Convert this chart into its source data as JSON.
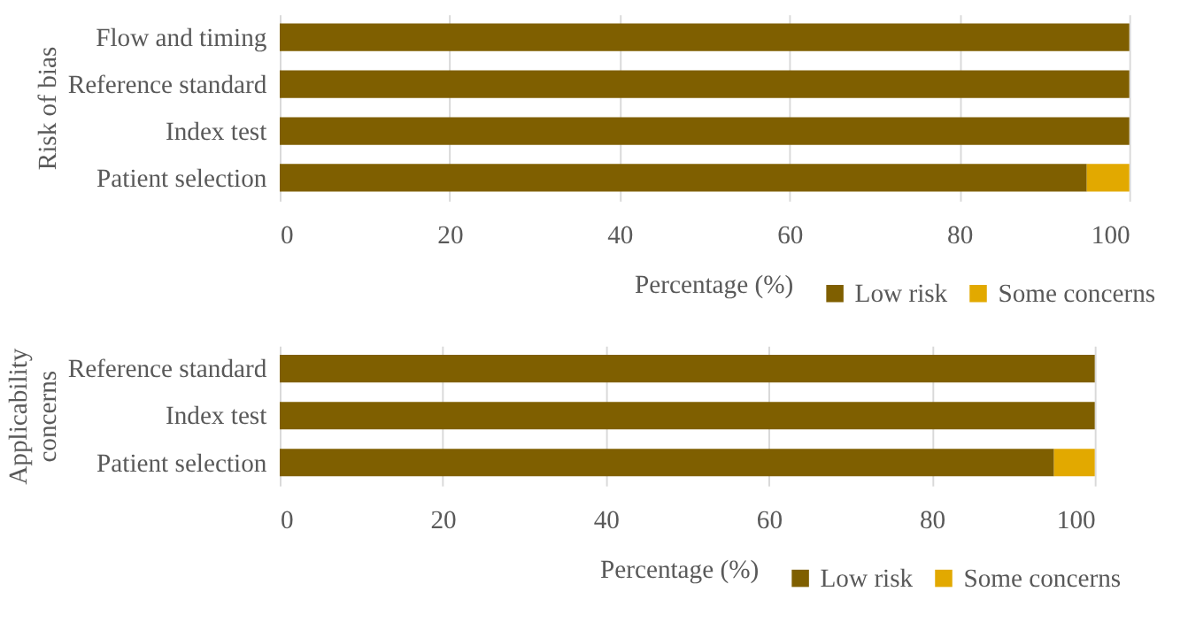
{
  "chart_data": [
    {
      "type": "bar",
      "orientation": "horizontal",
      "stacked": true,
      "ylabel": "Risk of bias",
      "xlabel": "Percentage (%)",
      "categories": [
        "Flow and timing",
        "Reference standard",
        "Index test",
        "Patient selection"
      ],
      "series": [
        {
          "name": "Low risk",
          "color": "#7f5f00",
          "values": [
            100,
            100,
            100,
            95
          ]
        },
        {
          "name": "Some concerns",
          "color": "#e2a900",
          "values": [
            0,
            0,
            0,
            5
          ]
        }
      ],
      "xlim": [
        0,
        100
      ],
      "xticks": [
        0,
        20,
        40,
        60,
        80,
        100
      ],
      "grid": "x",
      "legend": "bottom right"
    },
    {
      "type": "bar",
      "orientation": "horizontal",
      "stacked": true,
      "ylabel": "Applicability concerns",
      "xlabel": "Percentage (%)",
      "categories": [
        "Reference standard",
        "Index test",
        "Patient selection"
      ],
      "series": [
        {
          "name": "Low risk",
          "color": "#7f5f00",
          "values": [
            100,
            100,
            95
          ]
        },
        {
          "name": "Some concerns",
          "color": "#e2a900",
          "values": [
            0,
            0,
            5
          ]
        }
      ],
      "xlim": [
        0,
        100
      ],
      "xticks": [
        0,
        20,
        40,
        60,
        80,
        100
      ],
      "grid": "x",
      "legend": "bottom right"
    }
  ]
}
